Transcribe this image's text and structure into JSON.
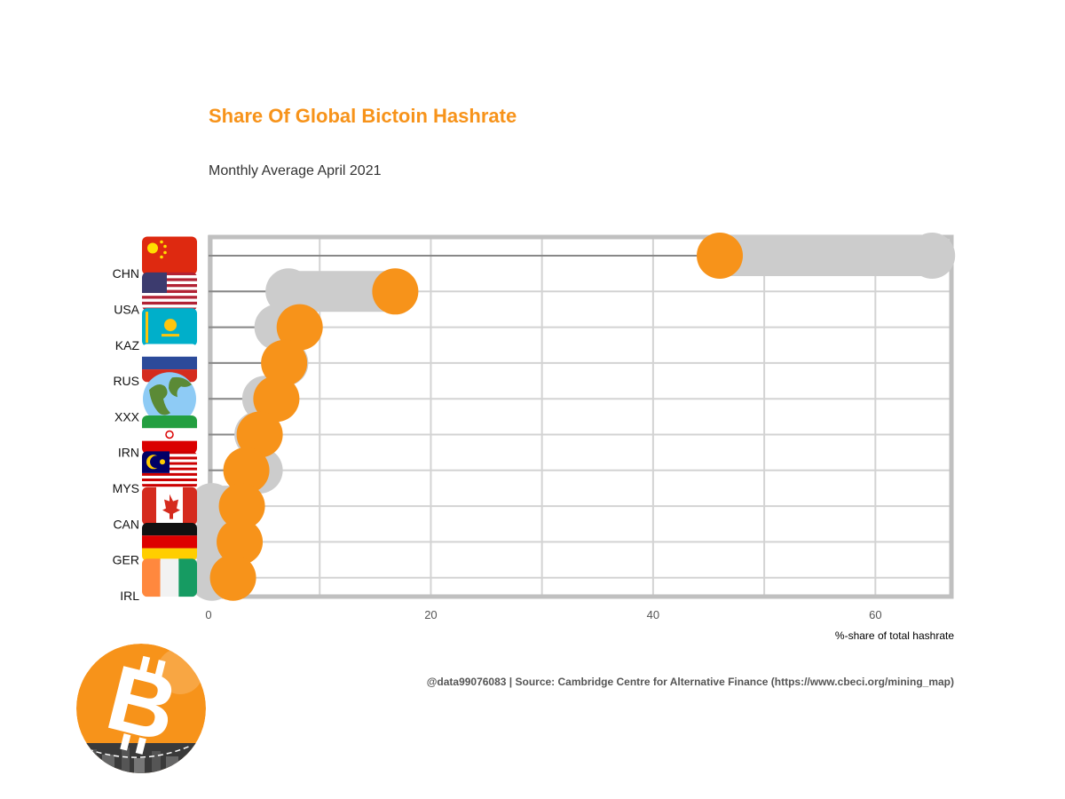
{
  "title": "Share Of Global Bictoin Hashrate",
  "subtitle": "Monthly Average April 2021",
  "caption": "@data99076083 | Source: Cambridge Centre for Alternative Finance (https://www.cbeci.org/mining_map)",
  "colors": {
    "accent": "#f7931a",
    "previous": "#cccccc",
    "grid": "#d3d3d3",
    "frame": "#c0c0c0"
  },
  "chart_data": {
    "type": "dumbbell",
    "xlabel": "%-share of total hashrate",
    "xlim": [
      0,
      67
    ],
    "xticks": [
      0,
      20,
      40,
      60
    ],
    "categories": [
      "CHN",
      "USA",
      "KAZ",
      "RUS",
      "XXX",
      "IRN",
      "MYS",
      "CAN",
      "GER",
      "IRL"
    ],
    "flags": [
      "china-flag-icon",
      "usa-flag-icon",
      "kazakhstan-flag-icon",
      "russia-flag-icon",
      "globe-icon",
      "iran-flag-icon",
      "malaysia-flag-icon",
      "canada-flag-icon",
      "germany-flag-icon",
      "ireland-flag-icon"
    ],
    "series": [
      {
        "values": [
          65.1,
          7.2,
          6.2,
          6.9,
          5.1,
          4.4,
          4.6,
          0.3,
          0.3,
          0.3
        ]
      },
      {
        "values": [
          46.0,
          16.8,
          8.2,
          6.8,
          6.1,
          4.6,
          3.4,
          3.0,
          2.8,
          2.2
        ]
      }
    ]
  }
}
